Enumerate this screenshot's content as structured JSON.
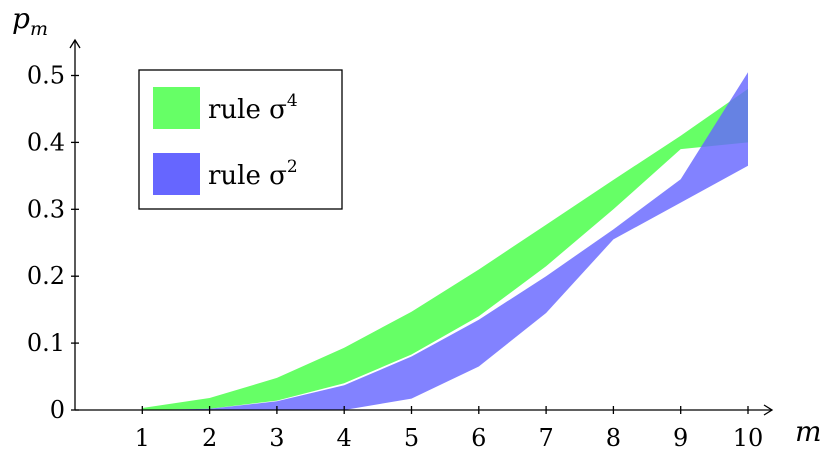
{
  "chart_data": {
    "type": "area",
    "title": "",
    "xlabel": "m",
    "ylabel": "p",
    "ylabel_subscript": "m",
    "xlim": [
      0,
      10.5
    ],
    "ylim": [
      0,
      0.5
    ],
    "x_ticks": [
      1,
      2,
      3,
      4,
      5,
      6,
      7,
      8,
      9,
      10
    ],
    "x_tick_labels": [
      "1",
      "2",
      "3",
      "4",
      "5",
      "6",
      "7",
      "8",
      "9",
      "10"
    ],
    "y_ticks": [
      0,
      0.1,
      0.2,
      0.3,
      0.4,
      0.5
    ],
    "y_tick_labels": [
      "0",
      "0.1",
      "0.2",
      "0.3",
      "0.4",
      "0.5"
    ],
    "grid": false,
    "legend_position": "top-left",
    "legend": [
      {
        "label": "rule σ",
        "superscript": "4",
        "color": "#66ff66"
      },
      {
        "label": "rule σ",
        "superscript": "2",
        "color": "#6666ff"
      }
    ],
    "series": [
      {
        "name": "rule σ4",
        "color": "#66ff66",
        "x": [
          1,
          2,
          3,
          4,
          5,
          6,
          7,
          8,
          9,
          10
        ],
        "upper": [
          0.003,
          0.018,
          0.048,
          0.093,
          0.147,
          0.21,
          0.277,
          0.344,
          0.41,
          0.48
        ],
        "lower": [
          0.0,
          0.002,
          0.014,
          0.04,
          0.083,
          0.14,
          0.215,
          0.3,
          0.39,
          0.4
        ]
      },
      {
        "name": "rule σ2",
        "color": "#6666ff",
        "x": [
          1,
          2,
          3,
          4,
          5,
          6,
          7,
          8,
          9,
          10
        ],
        "upper": [
          0.0,
          0.002,
          0.013,
          0.037,
          0.08,
          0.135,
          0.2,
          0.27,
          0.345,
          0.505
        ],
        "lower": [
          0.0,
          0.0,
          0.0,
          0.0,
          0.017,
          0.065,
          0.145,
          0.255,
          0.31,
          0.365
        ]
      }
    ]
  }
}
